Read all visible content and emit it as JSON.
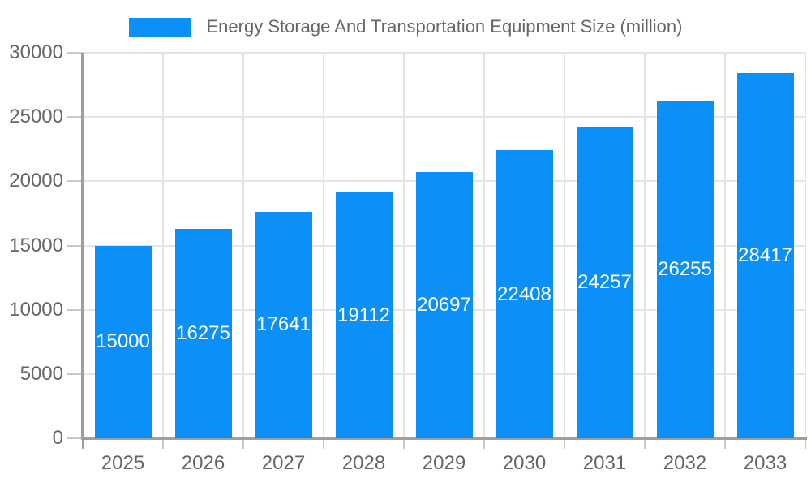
{
  "chart_data": {
    "type": "bar",
    "title": "Energy Storage And Transportation Equipment Size (million)",
    "legend": {
      "label": "Energy Storage And Transportation Equipment Size (million)",
      "position": "top-center"
    },
    "categories": [
      "2025",
      "2026",
      "2027",
      "2028",
      "2029",
      "2030",
      "2031",
      "2032",
      "2033"
    ],
    "values": [
      15000,
      16275,
      17641,
      19112,
      20697,
      22408,
      24257,
      26255,
      28417
    ],
    "xlabel": "",
    "ylabel": "",
    "ylim": [
      0,
      30000
    ],
    "yticks": [
      0,
      5000,
      10000,
      15000,
      20000,
      25000,
      30000
    ],
    "grid": true,
    "bar_labels": "white numbers centered inside bars",
    "colors": {
      "bar": "#0a90f8",
      "bar_label": "#ffffff",
      "axis": "#9e9e9e",
      "grid": "#e4e4e4",
      "tick": "#c9c9c9",
      "tick_text": "#666666",
      "legend_text": "#666666",
      "background": "#ffffff"
    }
  }
}
